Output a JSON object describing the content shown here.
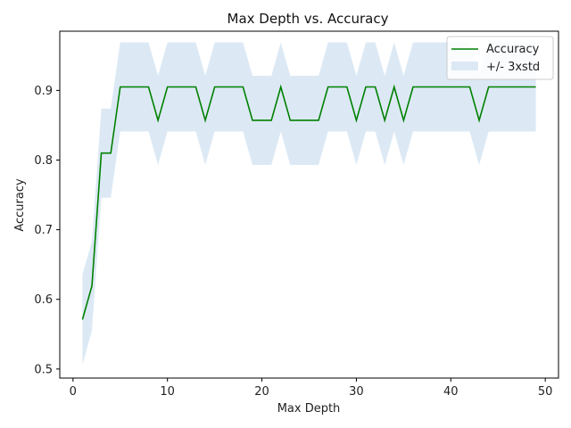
{
  "chart_data": {
    "type": "line",
    "title": "Max Depth vs. Accuracy",
    "xlabel": "Max Depth",
    "ylabel": "Accuracy",
    "xlim": [
      -1.4,
      51.4
    ],
    "ylim": [
      0.487,
      0.985
    ],
    "xticks": [
      0,
      10,
      20,
      30,
      40,
      50
    ],
    "yticks": [
      0.5,
      0.6,
      0.7,
      0.8,
      0.9
    ],
    "grid": false,
    "legend_position": "top-right",
    "colors": {
      "line": "#008000",
      "band": "#dce9f5"
    },
    "x": [
      1,
      2,
      3,
      4,
      5,
      6,
      7,
      8,
      9,
      10,
      11,
      12,
      13,
      14,
      15,
      16,
      17,
      18,
      19,
      20,
      21,
      22,
      23,
      24,
      25,
      26,
      27,
      28,
      29,
      30,
      31,
      32,
      33,
      34,
      35,
      36,
      37,
      38,
      39,
      40,
      41,
      42,
      43,
      44,
      45,
      46,
      47,
      48,
      49
    ],
    "series": [
      {
        "name": "Accuracy",
        "values": [
          0.571,
          0.619,
          0.81,
          0.81,
          0.905,
          0.905,
          0.905,
          0.905,
          0.857,
          0.905,
          0.905,
          0.905,
          0.905,
          0.857,
          0.905,
          0.905,
          0.905,
          0.905,
          0.857,
          0.857,
          0.857,
          0.905,
          0.857,
          0.857,
          0.857,
          0.857,
          0.905,
          0.905,
          0.905,
          0.857,
          0.905,
          0.905,
          0.857,
          0.905,
          0.857,
          0.905,
          0.905,
          0.905,
          0.905,
          0.905,
          0.905,
          0.905,
          0.857,
          0.905,
          0.905,
          0.905,
          0.905,
          0.905,
          0.905
        ]
      },
      {
        "name": "+/- 3xstd",
        "upper": [
          0.636,
          0.683,
          0.874,
          0.874,
          0.969,
          0.969,
          0.969,
          0.969,
          0.921,
          0.969,
          0.969,
          0.969,
          0.969,
          0.921,
          0.969,
          0.969,
          0.969,
          0.969,
          0.921,
          0.921,
          0.921,
          0.969,
          0.921,
          0.921,
          0.921,
          0.921,
          0.969,
          0.969,
          0.969,
          0.921,
          0.969,
          0.969,
          0.921,
          0.969,
          0.921,
          0.969,
          0.969,
          0.969,
          0.969,
          0.969,
          0.969,
          0.969,
          0.921,
          0.969,
          0.969,
          0.969,
          0.969,
          0.969,
          0.969
        ],
        "lower": [
          0.506,
          0.555,
          0.746,
          0.746,
          0.841,
          0.841,
          0.841,
          0.841,
          0.793,
          0.841,
          0.841,
          0.841,
          0.841,
          0.793,
          0.841,
          0.841,
          0.841,
          0.841,
          0.793,
          0.793,
          0.793,
          0.841,
          0.793,
          0.793,
          0.793,
          0.793,
          0.841,
          0.841,
          0.841,
          0.793,
          0.841,
          0.841,
          0.793,
          0.841,
          0.793,
          0.841,
          0.841,
          0.841,
          0.841,
          0.841,
          0.841,
          0.841,
          0.793,
          0.841,
          0.841,
          0.841,
          0.841,
          0.841,
          0.841
        ]
      }
    ]
  }
}
